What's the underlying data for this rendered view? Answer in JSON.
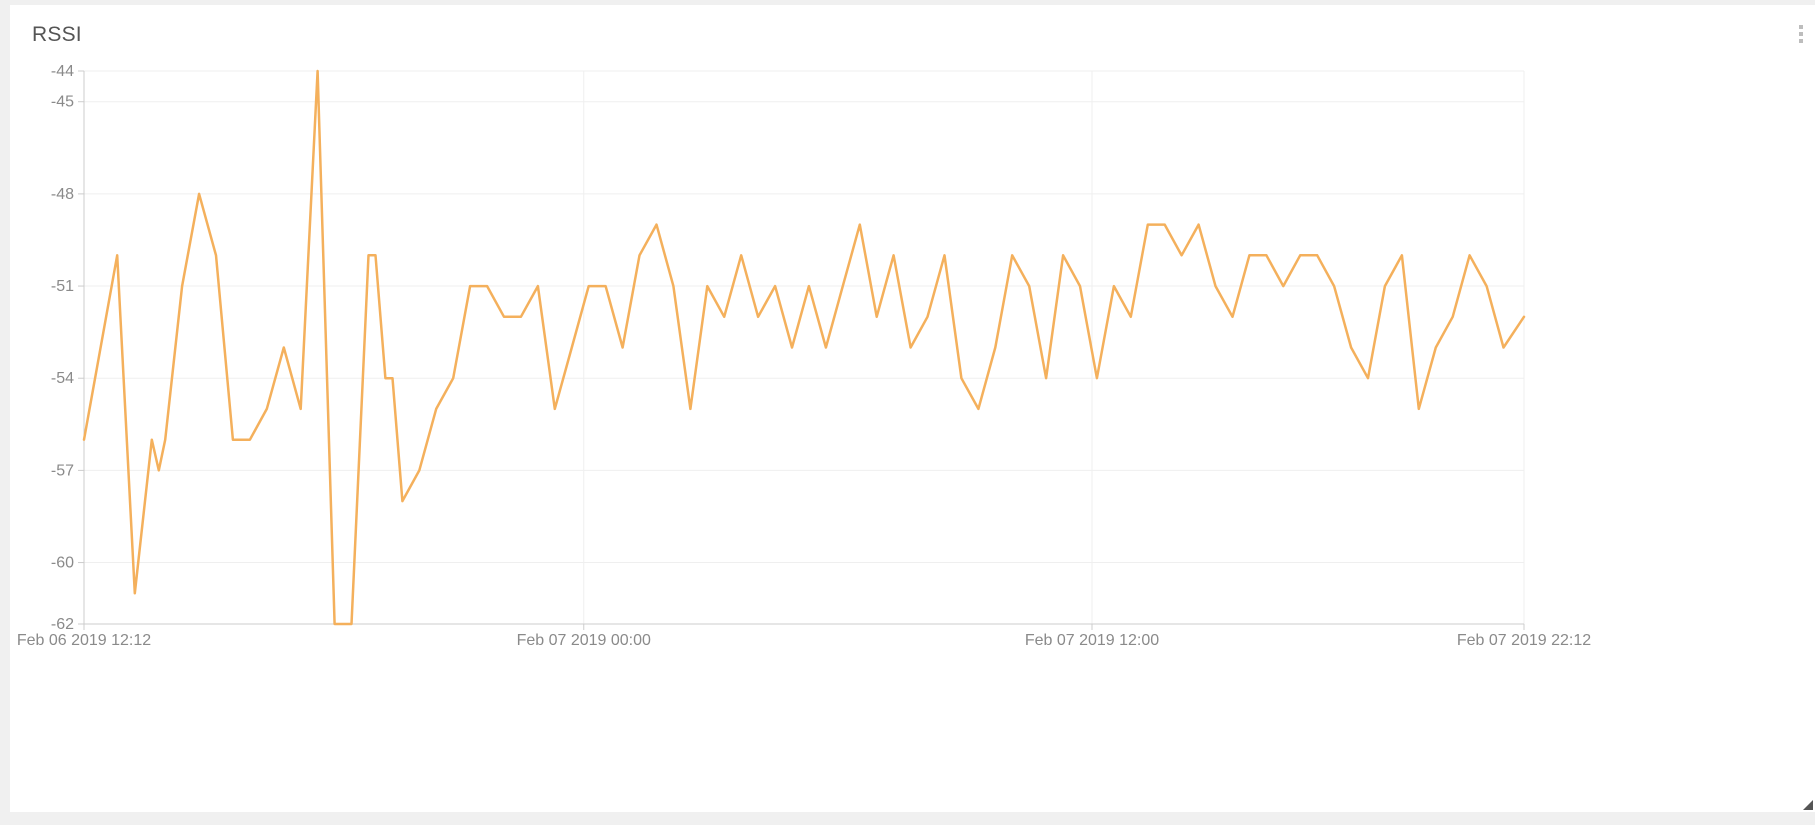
{
  "widget": {
    "title": "RSSI",
    "menu_icon": "vertical-dots-icon",
    "resize_icon": "resize-corner-icon"
  },
  "chart_data": {
    "type": "line",
    "title": "RSSI",
    "xlabel": "",
    "ylabel": "",
    "ylim": [
      -62,
      -44
    ],
    "yticks": [
      -44,
      -45,
      -48,
      -51,
      -54,
      -57,
      -60,
      -62
    ],
    "xlim": [
      "2019-02-06 12:12",
      "2019-02-07 22:12"
    ],
    "xticks": [
      {
        "time": "2019-02-06 12:12",
        "label": "Feb 06 2019 12:12"
      },
      {
        "time": "2019-02-07 00:00",
        "label": "Feb 07 2019 00:00"
      },
      {
        "time": "2019-02-07 12:00",
        "label": "Feb 07 2019 12:00"
      },
      {
        "time": "2019-02-07 22:12",
        "label": "Feb 07 2019 22:12"
      }
    ],
    "grid": true,
    "legend": "none",
    "line_color": "#f4b05c",
    "series": [
      {
        "x": [
          "2019-02-06 12:12",
          "2019-02-06 12:59",
          "2019-02-06 13:24",
          "2019-02-06 13:48",
          "2019-02-06 13:58",
          "2019-02-06 14:07",
          "2019-02-06 14:31",
          "2019-02-06 14:55",
          "2019-02-06 15:19",
          "2019-02-06 15:43",
          "2019-02-06 16:07",
          "2019-02-06 16:31",
          "2019-02-06 16:55",
          "2019-02-06 17:19",
          "2019-02-06 17:43",
          "2019-02-06 18:07",
          "2019-02-06 18:31",
          "2019-02-06 18:55",
          "2019-02-06 19:05",
          "2019-02-06 19:19",
          "2019-02-06 19:29",
          "2019-02-06 19:43",
          "2019-02-06 20:07",
          "2019-02-06 20:31",
          "2019-02-06 20:55",
          "2019-02-06 21:19",
          "2019-02-06 21:43",
          "2019-02-06 22:07",
          "2019-02-06 22:31",
          "2019-02-06 22:55",
          "2019-02-06 23:19",
          "2019-02-06 23:43",
          "2019-02-07 00:07",
          "2019-02-07 00:31",
          "2019-02-07 00:55",
          "2019-02-07 01:19",
          "2019-02-07 01:43",
          "2019-02-07 02:07",
          "2019-02-07 02:31",
          "2019-02-07 02:55",
          "2019-02-07 03:19",
          "2019-02-07 03:43",
          "2019-02-07 04:07",
          "2019-02-07 04:31",
          "2019-02-07 04:55",
          "2019-02-07 05:19",
          "2019-02-07 05:43",
          "2019-02-07 06:07",
          "2019-02-07 06:31",
          "2019-02-07 06:55",
          "2019-02-07 07:19",
          "2019-02-07 07:43",
          "2019-02-07 08:07",
          "2019-02-07 08:31",
          "2019-02-07 08:55",
          "2019-02-07 09:19",
          "2019-02-07 09:43",
          "2019-02-07 10:07",
          "2019-02-07 10:31",
          "2019-02-07 10:55",
          "2019-02-07 11:19",
          "2019-02-07 11:43",
          "2019-02-07 12:07",
          "2019-02-07 12:31",
          "2019-02-07 12:55",
          "2019-02-07 13:19",
          "2019-02-07 13:43",
          "2019-02-07 14:07",
          "2019-02-07 14:31",
          "2019-02-07 14:55",
          "2019-02-07 15:19",
          "2019-02-07 15:43",
          "2019-02-07 16:07",
          "2019-02-07 16:31",
          "2019-02-07 16:55",
          "2019-02-07 17:19",
          "2019-02-07 17:43",
          "2019-02-07 18:07",
          "2019-02-07 18:31",
          "2019-02-07 18:55",
          "2019-02-07 19:19",
          "2019-02-07 19:43",
          "2019-02-07 20:07",
          "2019-02-07 20:31",
          "2019-02-07 20:55",
          "2019-02-07 21:19",
          "2019-02-07 21:43",
          "2019-02-07 22:12"
        ],
        "y": [
          -56,
          -50,
          -61,
          -56,
          -57,
          -56,
          -51,
          -48,
          -50,
          -56,
          -56,
          -55,
          -53,
          -55,
          -44,
          -62,
          -62,
          -50,
          -50,
          -54,
          -54,
          -58,
          -57,
          -55,
          -54,
          -51,
          -51,
          -52,
          -52,
          -51,
          -55,
          -53,
          -51,
          -51,
          -53,
          -50,
          -49,
          -51,
          -55,
          -51,
          -52,
          -50,
          -52,
          -51,
          -53,
          -51,
          -53,
          -51,
          -49,
          -52,
          -50,
          -53,
          -52,
          -50,
          -54,
          -55,
          -53,
          -50,
          -51,
          -54,
          -50,
          -51,
          -54,
          -51,
          -52,
          -49,
          -49,
          -50,
          -49,
          -51,
          -52,
          -50,
          -50,
          -51,
          -50,
          -50,
          -51,
          -53,
          -54,
          -51,
          -50,
          -55,
          -53,
          -52,
          -50,
          -51,
          -53,
          -52
        ]
      }
    ]
  }
}
